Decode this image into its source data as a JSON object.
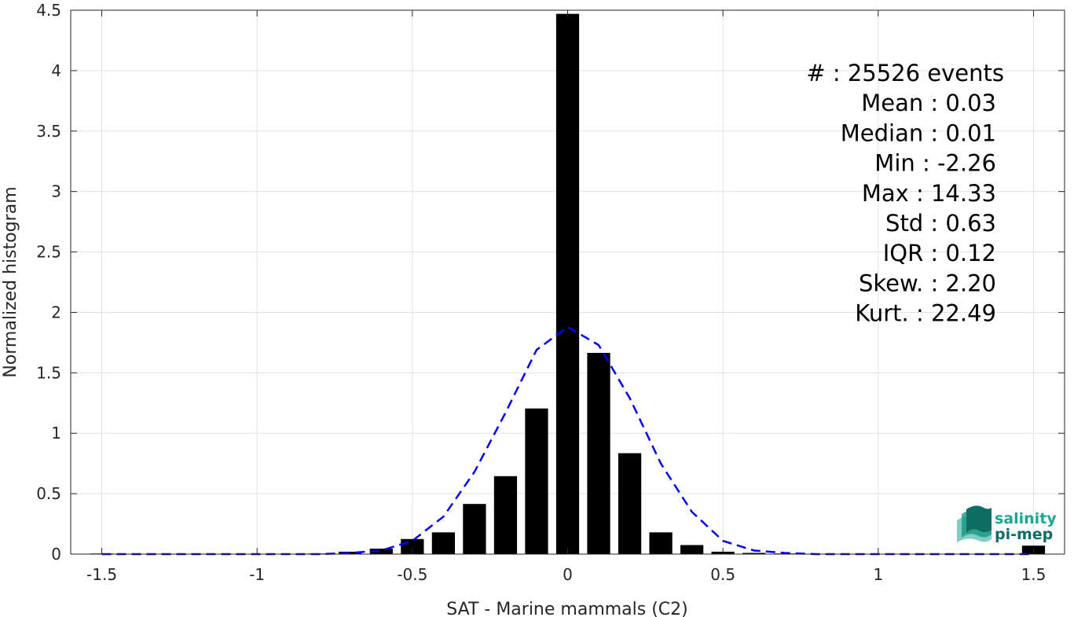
{
  "chart_data": {
    "type": "bar",
    "xlabel": "SAT - Marine mammals (C2)",
    "ylabel": "Normalized histogram",
    "xlim": [
      -1.6,
      1.6
    ],
    "ylim": [
      0,
      4.5
    ],
    "xticks": [
      -1.5,
      -1,
      -0.5,
      0,
      0.5,
      1,
      1.5
    ],
    "xtick_labels": [
      "-1.5",
      "-1",
      "-0.5",
      "0",
      "0.5",
      "1",
      "1.5"
    ],
    "yticks": [
      0,
      0.5,
      1,
      1.5,
      2,
      2.5,
      3,
      3.5,
      4,
      4.5
    ],
    "ytick_labels": [
      "0",
      "0.5",
      "1",
      "1.5",
      "2",
      "2.5",
      "3",
      "3.5",
      "4",
      "4.5"
    ],
    "grid": true,
    "bar_color": "#000000",
    "x": [
      -1.5,
      -1.4,
      -1.3,
      -1.2,
      -1.1,
      -1.0,
      -0.9,
      -0.8,
      -0.7,
      -0.6,
      -0.5,
      -0.4,
      -0.3,
      -0.2,
      -0.1,
      0.0,
      0.1,
      0.2,
      0.3,
      0.4,
      0.5,
      0.6,
      0.7,
      0.8,
      0.9,
      1.0,
      1.1,
      1.2,
      1.3,
      1.4,
      1.5
    ],
    "values": [
      0.005,
      0.0,
      0.0,
      0.0,
      0.0,
      0.0,
      0.002,
      0.005,
      0.02,
      0.045,
      0.125,
      0.18,
      0.415,
      0.645,
      1.205,
      4.47,
      1.665,
      0.835,
      0.18,
      0.075,
      0.02,
      0.01,
      0.005,
      0.003,
      0.002,
      0.002,
      0.002,
      0.002,
      0.002,
      0.002,
      0.07
    ],
    "fit_curve": {
      "style": "dashed",
      "color": "#0000ff",
      "x": [
        -1.5,
        -1.4,
        -1.3,
        -1.2,
        -1.1,
        -1.0,
        -0.9,
        -0.8,
        -0.7,
        -0.6,
        -0.5,
        -0.4,
        -0.3,
        -0.2,
        -0.1,
        0.0,
        0.1,
        0.2,
        0.3,
        0.4,
        0.5,
        0.6,
        0.7,
        0.8,
        0.9,
        1.0,
        1.1,
        1.2,
        1.3,
        1.4,
        1.5
      ],
      "y": [
        0.0,
        0.0,
        0.0,
        0.0,
        0.0,
        0.0,
        0.0,
        0.0,
        0.01,
        0.03,
        0.11,
        0.31,
        0.68,
        1.17,
        1.69,
        1.88,
        1.73,
        1.29,
        0.75,
        0.35,
        0.11,
        0.03,
        0.01,
        0.0,
        0.0,
        0.0,
        0.0,
        0.0,
        0.0,
        0.0,
        0.0
      ]
    },
    "stats": [
      {
        "label": "#  : 25526 events"
      },
      {
        "label": "Mean : 0.03"
      },
      {
        "label": "Median : 0.01"
      },
      {
        "label": "Min : -2.26"
      },
      {
        "label": "Max : 14.33"
      },
      {
        "label": "Std : 0.63"
      },
      {
        "label": "IQR : 0.12"
      },
      {
        "label": "Skew. : 2.20"
      },
      {
        "label": "Kurt. : 22.49"
      }
    ]
  },
  "logo": {
    "line1": "salinity",
    "line2": "pi-mep",
    "color_primary": "#1aa88f",
    "color_secondary": "#0f6e63"
  }
}
